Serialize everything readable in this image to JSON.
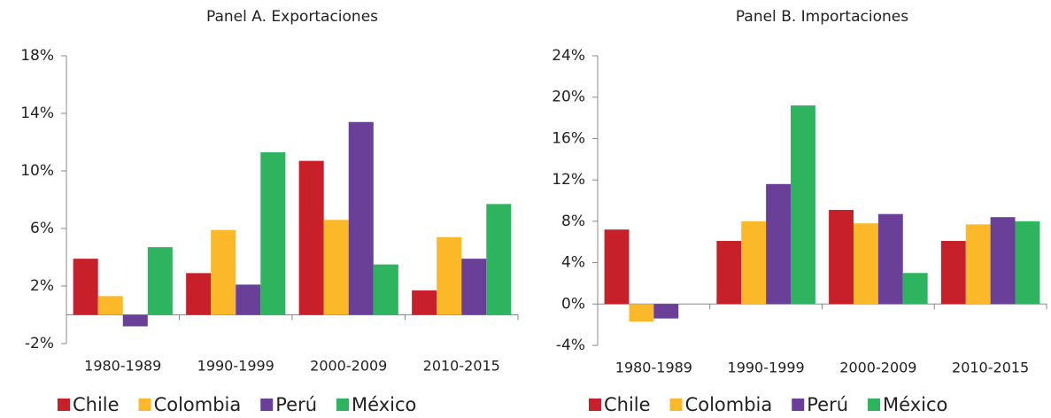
{
  "chart_data": [
    {
      "type": "bar",
      "title": "Panel A. Exportaciones",
      "categories": [
        "1980-1989",
        "1990-1999",
        "2000-2009",
        "2010-2015"
      ],
      "series": [
        {
          "name": "Chile",
          "color": "#c8202a",
          "values": [
            3.9,
            2.9,
            10.7,
            1.7
          ]
        },
        {
          "name": "Colombia",
          "color": "#fbb829",
          "values": [
            1.3,
            5.9,
            6.6,
            5.4
          ]
        },
        {
          "name": "Perú",
          "color": "#6a3f98",
          "values": [
            -0.8,
            2.1,
            13.4,
            3.9
          ]
        },
        {
          "name": "México",
          "color": "#2eb35e",
          "values": [
            4.7,
            11.3,
            3.5,
            7.7
          ]
        }
      ],
      "ylim": [
        -2,
        18
      ],
      "yticks": [
        {
          "value": -2,
          "label": "-2%"
        },
        {
          "value": 2,
          "label": "2%"
        },
        {
          "value": 6,
          "label": "6%"
        },
        {
          "value": 10,
          "label": "10%"
        },
        {
          "value": 14,
          "label": "14%"
        },
        {
          "value": 18,
          "label": "18%"
        }
      ]
    },
    {
      "type": "bar",
      "title": "Panel B. Importaciones",
      "categories": [
        "1980-1989",
        "1990-1999",
        "2000-2009",
        "2010-2015"
      ],
      "series": [
        {
          "name": "Chile",
          "color": "#c8202a",
          "values": [
            7.2,
            6.1,
            9.1,
            6.1
          ]
        },
        {
          "name": "Colombia",
          "color": "#fbb829",
          "values": [
            -1.7,
            8.0,
            7.8,
            7.7
          ]
        },
        {
          "name": "Perú",
          "color": "#6a3f98",
          "values": [
            -1.4,
            11.6,
            8.7,
            8.4
          ]
        },
        {
          "name": "México",
          "color": "#2eb35e",
          "values": [
            null,
            19.2,
            3.0,
            8.0
          ]
        }
      ],
      "ylim": [
        -4,
        24
      ],
      "yticks": [
        {
          "value": -4,
          "label": "-4%"
        },
        {
          "value": 0,
          "label": "0%"
        },
        {
          "value": 4,
          "label": "4%"
        },
        {
          "value": 8,
          "label": "8%"
        },
        {
          "value": 12,
          "label": "12%"
        },
        {
          "value": 16,
          "label": "16%"
        },
        {
          "value": 20,
          "label": "20%"
        },
        {
          "value": 24,
          "label": "24%"
        }
      ]
    }
  ]
}
